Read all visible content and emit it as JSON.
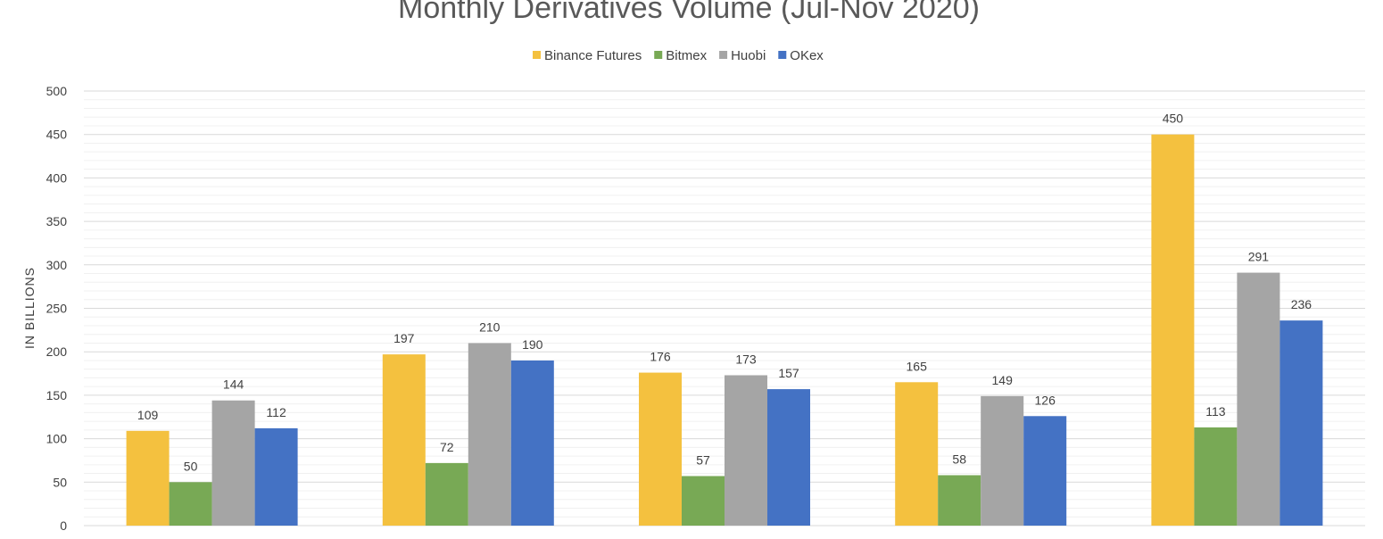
{
  "chart_data": {
    "type": "bar",
    "title": "Monthly Derivatives Volume (Jul-Nov 2020)",
    "ylabel": "IN BILLIONS",
    "xlabel": "",
    "ylim": [
      0,
      500
    ],
    "y_ticks": [
      0,
      50,
      100,
      150,
      200,
      250,
      300,
      350,
      400,
      450,
      500
    ],
    "y_tick_labels": [
      "0",
      "50",
      "100",
      "150",
      "200",
      "250",
      "300",
      "350",
      "400",
      "450",
      "500"
    ],
    "grid": true,
    "legend_position": "top",
    "categories": [
      "",
      "",
      "",
      "",
      ""
    ],
    "series": [
      {
        "name": "Binance Futures",
        "color": "#F4C13F",
        "values": [
          109,
          197,
          176,
          165,
          450
        ]
      },
      {
        "name": "Bitmex",
        "color": "#78A955",
        "values": [
          50,
          72,
          57,
          58,
          113
        ]
      },
      {
        "name": "Huobi",
        "color": "#A5A5A5",
        "values": [
          144,
          210,
          173,
          149,
          291
        ]
      },
      {
        "name": "OKex",
        "color": "#4472C4",
        "values": [
          112,
          190,
          157,
          126,
          236
        ]
      }
    ]
  }
}
